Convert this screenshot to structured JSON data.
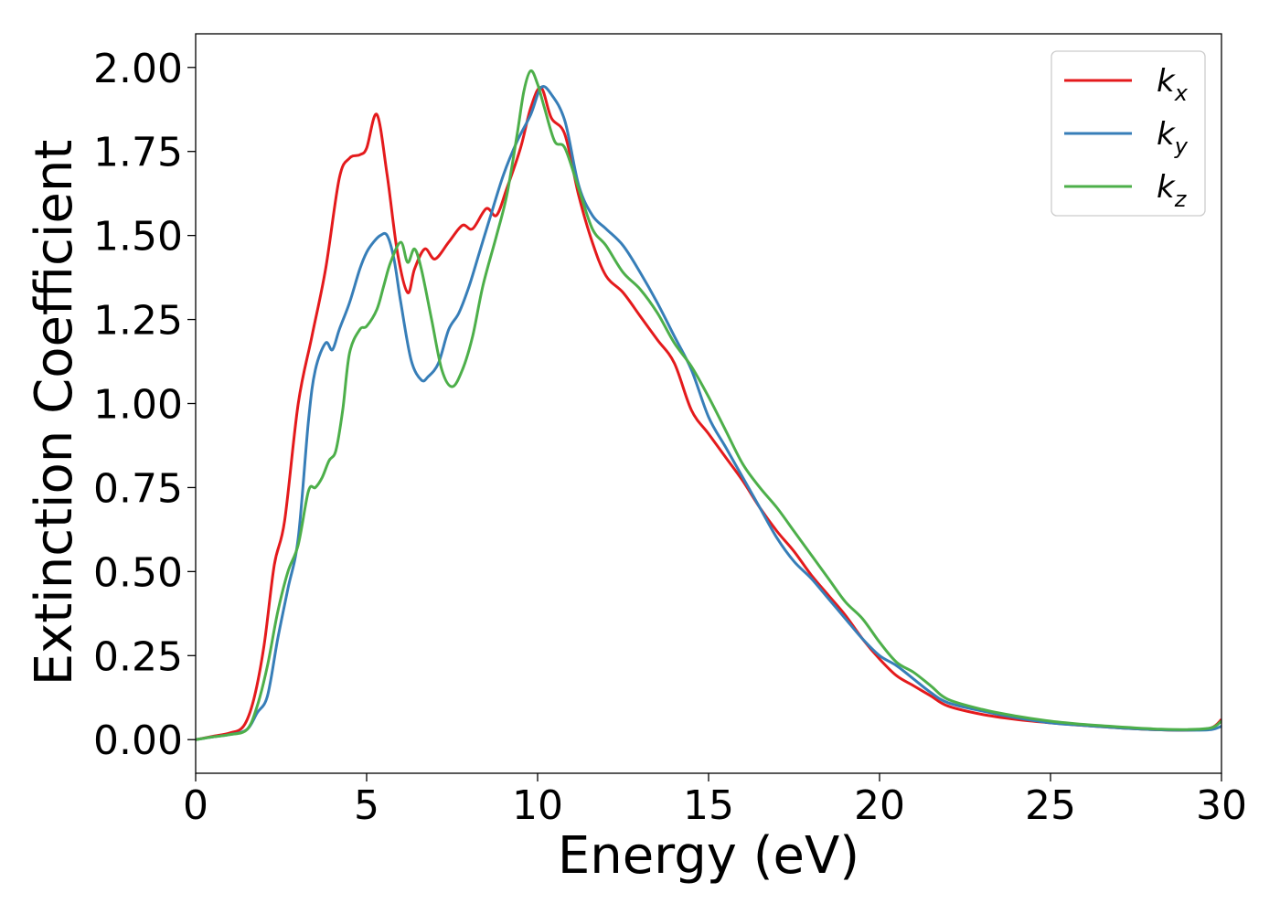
{
  "chart_data": {
    "type": "line",
    "title": "",
    "xlabel": "Energy (eV)",
    "ylabel": "Extinction Coefficient",
    "xlim": [
      0,
      30
    ],
    "ylim": [
      -0.1,
      2.1
    ],
    "xticks": [
      "0",
      "5",
      "10",
      "15",
      "20",
      "25",
      "30"
    ],
    "yticks": [
      "0.00",
      "0.25",
      "0.50",
      "0.75",
      "1.00",
      "1.25",
      "1.50",
      "1.75",
      "2.00"
    ],
    "grid": false,
    "legend_position": "top-right",
    "series": [
      {
        "name": "k",
        "subscript": "x",
        "color": "#e41a1c",
        "x": [
          0,
          0.5,
          1.0,
          1.4,
          1.7,
          2.0,
          2.3,
          2.6,
          3.0,
          3.4,
          3.8,
          4.2,
          4.5,
          4.8,
          5.0,
          5.3,
          5.6,
          5.9,
          6.2,
          6.4,
          6.7,
          7.0,
          7.4,
          7.8,
          8.1,
          8.5,
          8.8,
          9.1,
          9.5,
          9.8,
          10.1,
          10.4,
          10.8,
          11.2,
          11.6,
          12.0,
          12.5,
          13.0,
          13.5,
          14.0,
          14.5,
          15.0,
          15.5,
          16.0,
          16.5,
          17.0,
          17.5,
          18.0,
          18.5,
          19.0,
          19.5,
          20.0,
          20.5,
          21.0,
          21.5,
          22.0,
          23.0,
          24.0,
          25.0,
          26.0,
          27.0,
          28.0,
          29.0,
          29.7,
          30.0
        ],
        "y": [
          0.0,
          0.01,
          0.02,
          0.04,
          0.12,
          0.28,
          0.52,
          0.65,
          1.0,
          1.2,
          1.4,
          1.67,
          1.73,
          1.74,
          1.76,
          1.86,
          1.68,
          1.45,
          1.33,
          1.4,
          1.46,
          1.43,
          1.48,
          1.53,
          1.52,
          1.58,
          1.56,
          1.64,
          1.76,
          1.88,
          1.94,
          1.85,
          1.8,
          1.62,
          1.48,
          1.38,
          1.33,
          1.26,
          1.19,
          1.12,
          0.98,
          0.91,
          0.84,
          0.77,
          0.69,
          0.62,
          0.56,
          0.49,
          0.43,
          0.37,
          0.3,
          0.24,
          0.19,
          0.16,
          0.13,
          0.1,
          0.075,
          0.06,
          0.05,
          0.042,
          0.035,
          0.03,
          0.028,
          0.035,
          0.06
        ]
      },
      {
        "name": "k",
        "subscript": "y",
        "color": "#377eb8",
        "x": [
          0,
          0.5,
          1.0,
          1.5,
          1.8,
          2.1,
          2.4,
          2.7,
          3.0,
          3.3,
          3.5,
          3.8,
          4.0,
          4.2,
          4.5,
          4.8,
          5.0,
          5.2,
          5.4,
          5.6,
          5.8,
          6.0,
          6.3,
          6.6,
          6.8,
          7.1,
          7.4,
          7.7,
          8.0,
          8.3,
          8.6,
          9.0,
          9.4,
          9.8,
          10.1,
          10.4,
          10.8,
          11.2,
          11.6,
          12.0,
          12.5,
          13.0,
          13.5,
          14.0,
          14.5,
          15.0,
          15.5,
          16.0,
          16.5,
          17.0,
          17.5,
          18.0,
          18.5,
          19.0,
          19.5,
          20.0,
          20.5,
          21.0,
          21.5,
          22.0,
          23.0,
          24.0,
          25.0,
          26.0,
          27.0,
          28.0,
          29.0,
          29.7,
          30.0
        ],
        "y": [
          0.0,
          0.008,
          0.015,
          0.03,
          0.08,
          0.13,
          0.3,
          0.45,
          0.6,
          0.95,
          1.1,
          1.18,
          1.16,
          1.22,
          1.3,
          1.4,
          1.45,
          1.48,
          1.5,
          1.5,
          1.43,
          1.3,
          1.13,
          1.07,
          1.08,
          1.12,
          1.22,
          1.27,
          1.35,
          1.45,
          1.55,
          1.68,
          1.78,
          1.86,
          1.94,
          1.92,
          1.84,
          1.65,
          1.56,
          1.52,
          1.47,
          1.39,
          1.3,
          1.2,
          1.1,
          0.96,
          0.87,
          0.78,
          0.69,
          0.6,
          0.53,
          0.48,
          0.42,
          0.36,
          0.3,
          0.25,
          0.22,
          0.18,
          0.14,
          0.11,
          0.085,
          0.065,
          0.05,
          0.042,
          0.035,
          0.03,
          0.028,
          0.03,
          0.04
        ]
      },
      {
        "name": "k",
        "subscript": "z",
        "color": "#4daf4a",
        "x": [
          0,
          0.5,
          1.0,
          1.5,
          1.8,
          2.1,
          2.4,
          2.7,
          3.0,
          3.3,
          3.5,
          3.7,
          3.9,
          4.1,
          4.3,
          4.5,
          4.8,
          5.0,
          5.3,
          5.5,
          5.7,
          6.0,
          6.2,
          6.4,
          6.6,
          6.9,
          7.2,
          7.5,
          7.8,
          8.1,
          8.4,
          8.8,
          9.1,
          9.4,
          9.6,
          9.8,
          10.0,
          10.2,
          10.5,
          10.8,
          11.2,
          11.6,
          12.0,
          12.5,
          13.0,
          13.5,
          14.0,
          14.5,
          15.0,
          15.5,
          16.0,
          16.5,
          17.0,
          17.5,
          18.0,
          18.5,
          19.0,
          19.5,
          20.0,
          20.5,
          21.0,
          21.5,
          22.0,
          23.0,
          24.0,
          25.0,
          26.0,
          27.0,
          28.0,
          29.0,
          29.7,
          30.0
        ],
        "y": [
          0.0,
          0.008,
          0.015,
          0.03,
          0.1,
          0.22,
          0.38,
          0.5,
          0.58,
          0.74,
          0.75,
          0.78,
          0.83,
          0.86,
          0.98,
          1.15,
          1.22,
          1.23,
          1.28,
          1.35,
          1.42,
          1.48,
          1.42,
          1.46,
          1.4,
          1.25,
          1.1,
          1.05,
          1.1,
          1.2,
          1.35,
          1.5,
          1.62,
          1.8,
          1.93,
          1.99,
          1.95,
          1.88,
          1.78,
          1.76,
          1.64,
          1.52,
          1.47,
          1.39,
          1.34,
          1.27,
          1.18,
          1.11,
          1.02,
          0.92,
          0.82,
          0.75,
          0.69,
          0.62,
          0.55,
          0.48,
          0.41,
          0.36,
          0.29,
          0.23,
          0.2,
          0.16,
          0.12,
          0.09,
          0.07,
          0.055,
          0.045,
          0.038,
          0.032,
          0.03,
          0.035,
          0.055
        ]
      }
    ]
  }
}
